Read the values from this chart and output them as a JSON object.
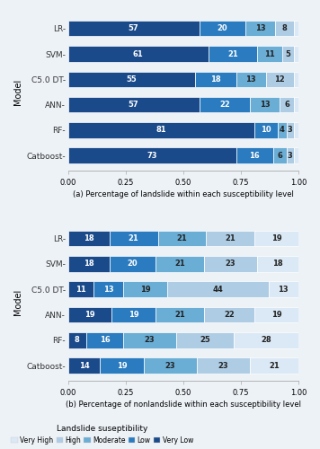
{
  "models": [
    "LR",
    "SVM",
    "C5.0 DT",
    "ANN",
    "RF",
    "Catboost"
  ],
  "model_labels": [
    "LR-",
    "SVM-",
    "C5.0 DT-",
    "ANN-",
    "RF-",
    "Catboost-"
  ],
  "landslide": {
    "Very Low": [
      57,
      61,
      55,
      57,
      81,
      73
    ],
    "Low": [
      20,
      21,
      18,
      22,
      10,
      16
    ],
    "Moderate": [
      13,
      11,
      13,
      13,
      4,
      6
    ],
    "High": [
      8,
      5,
      12,
      6,
      3,
      3
    ],
    "Very High": [
      2,
      2,
      2,
      2,
      2,
      2
    ]
  },
  "nonlandslide": {
    "Very Low": [
      18,
      18,
      11,
      19,
      8,
      14
    ],
    "Low": [
      21,
      20,
      13,
      19,
      16,
      19
    ],
    "Moderate": [
      21,
      21,
      19,
      21,
      23,
      23
    ],
    "High": [
      21,
      23,
      44,
      22,
      25,
      23
    ],
    "Very High": [
      19,
      18,
      13,
      19,
      28,
      21
    ]
  },
  "colors": {
    "Very High": "#dbe8f5",
    "High": "#aecde5",
    "Moderate": "#6aadd5",
    "Low": "#2a7bbf",
    "Very Low": "#1a4a8a"
  },
  "bar_order": [
    "Very Low",
    "Low",
    "Moderate",
    "High",
    "Very High"
  ],
  "legend_order": [
    "Very High",
    "High",
    "Moderate",
    "Low",
    "Very Low"
  ],
  "title_a": "(a) Percentage of landslide within each susceptibility level",
  "title_b": "(b) Percentage of nonlandslide within each susceptibility level",
  "ylabel": "Model",
  "legend_title": "Landslide suseptibility",
  "bg_color": "#edf2f7"
}
